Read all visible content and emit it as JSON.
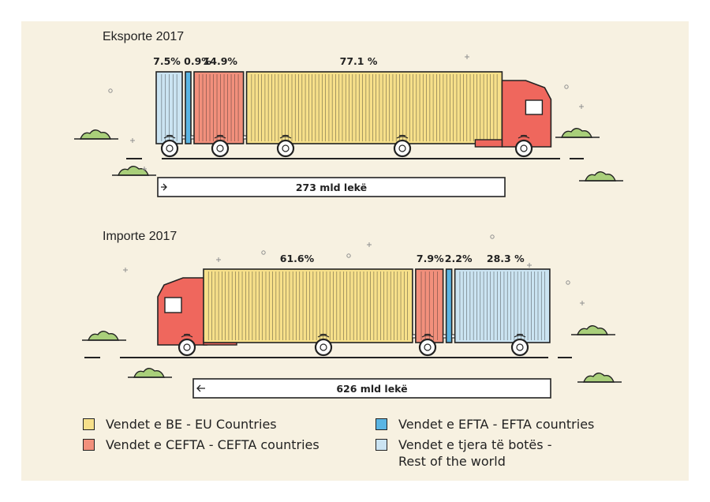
{
  "colors": {
    "eu": "#f7e08a",
    "cefta": "#f2907c",
    "efta": "#5bb5e3",
    "rest": "#cbe4f2",
    "cab": "#ef675d",
    "outline": "#222222",
    "bush": "#a9cf7a"
  },
  "legend": [
    {
      "key": "eu",
      "label": "Vendet e BE - EU Countries"
    },
    {
      "key": "cefta",
      "label": "Vendet e CEFTA - CEFTA countries"
    },
    {
      "key": "efta",
      "label": "Vendet e EFTA - EFTA countries"
    },
    {
      "key": "rest",
      "label_line1": "Vendet e tjera të botës -",
      "label_line2": "Rest of the world"
    }
  ],
  "chart_data": [
    {
      "type": "bar",
      "title": "Eksporte 2017",
      "total_label": "273 mld lekë",
      "series": [
        {
          "key": "rest",
          "label": "7.5%",
          "value": 7.5
        },
        {
          "key": "efta",
          "label": "0.9%",
          "value": 0.9
        },
        {
          "key": "cefta",
          "label": "14.9%",
          "value": 14.9
        },
        {
          "key": "eu",
          "label": "77.1 %",
          "value": 77.1
        }
      ]
    },
    {
      "type": "bar",
      "title": "Importe 2017",
      "total_label": "626 mld lekë",
      "series": [
        {
          "key": "eu",
          "label": "61.6%",
          "value": 61.6
        },
        {
          "key": "cefta",
          "label": "7.9%",
          "value": 7.9
        },
        {
          "key": "efta",
          "label": "2.2%",
          "value": 2.2
        },
        {
          "key": "rest",
          "label": "28.3 %",
          "value": 28.3
        }
      ]
    }
  ]
}
